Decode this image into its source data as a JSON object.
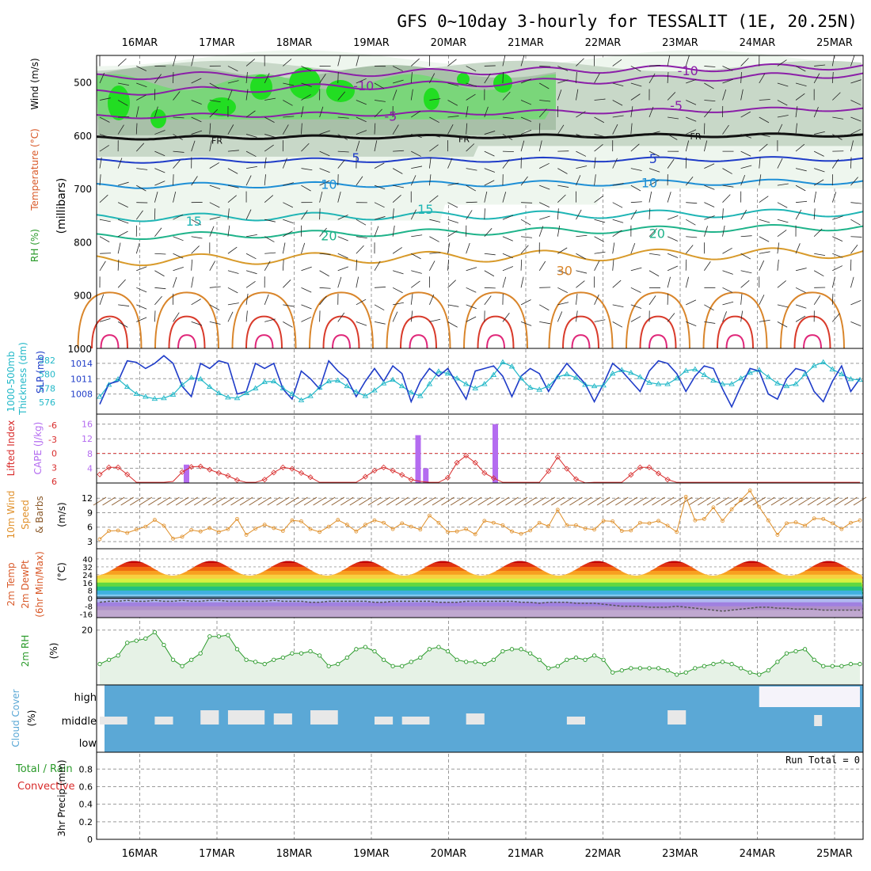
{
  "title": "GFS 0~10day 3-hourly for TESSALIT (1E, 20.25N)",
  "dates": [
    "16MAR",
    "17MAR",
    "18MAR",
    "19MAR",
    "20MAR",
    "21MAR",
    "22MAR",
    "23MAR",
    "24MAR",
    "25MAR"
  ],
  "colors": {
    "grid": "#9a9a9a",
    "rh_green": "#7ad67a",
    "sky": "#5ba8d6",
    "cloud_fill": "#e8e8e8",
    "rh2m": "#2a9a2a",
    "thick": "#22b8c8",
    "slp": "#1f3cc8",
    "li": "#d82b2b",
    "cape": "#b46cf0",
    "wind": "#e0902a",
    "barb": "#8b5a2b"
  },
  "chart_data": [
    {
      "type": "heatmap",
      "panel": "upper_air",
      "ylabel_rh": "RH (%)",
      "ylabel_temp": "Temperature (°C)",
      "ylabel_wind": "Wind (m/s)",
      "ylabel_units": "(millibars)",
      "yticks": [
        500,
        600,
        700,
        800,
        900,
        1000
      ],
      "ylim": [
        1000,
        450
      ],
      "rh_levels": [
        30,
        50,
        70,
        90
      ],
      "isotherm_labels": [
        {
          "text": "-10",
          "date_offset": 7.1,
          "p": 480
        },
        {
          "text": "-10",
          "date_offset": 2.9,
          "p": 508
        },
        {
          "text": "-5",
          "date_offset": 6.95,
          "p": 545
        },
        {
          "text": "-5",
          "date_offset": 3.25,
          "p": 565
        },
        {
          "text": "FR",
          "date_offset": 1.0,
          "p": 608
        },
        {
          "text": "FR",
          "date_offset": 4.2,
          "p": 605
        },
        {
          "text": "FR",
          "date_offset": 7.2,
          "p": 600
        },
        {
          "text": "5",
          "date_offset": 2.8,
          "p": 643
        },
        {
          "text": "5",
          "date_offset": 6.65,
          "p": 645
        },
        {
          "text": "10",
          "date_offset": 2.45,
          "p": 693
        },
        {
          "text": "10",
          "date_offset": 6.6,
          "p": 690
        },
        {
          "text": "15",
          "date_offset": 0.7,
          "p": 762
        },
        {
          "text": "15",
          "date_offset": 3.7,
          "p": 740
        },
        {
          "text": "20",
          "date_offset": 2.45,
          "p": 790
        },
        {
          "text": "20",
          "date_offset": 6.7,
          "p": 785
        },
        {
          "text": "30",
          "date_offset": 5.5,
          "p": 855
        }
      ]
    },
    {
      "type": "line",
      "panel": "thickness_slp",
      "series": [
        {
          "name": "1000-500mb Thickness (dm)",
          "axis_ticks": [
            576,
            578,
            580,
            582
          ],
          "values": [
            576.8,
            578.5,
            579.3,
            578.2,
            577.2,
            576.8,
            576.5,
            576.6,
            577.1,
            578.5,
            579.5,
            579.3,
            578.2,
            577.3,
            576.7,
            576.6,
            577.3,
            578.0,
            578.9,
            579.0,
            578.0,
            577.2,
            576.3,
            576.9,
            578.1,
            579.0,
            579.1,
            578.3,
            577.5,
            576.9,
            577.7,
            578.7,
            579.2,
            578.3,
            577.4,
            576.9,
            578.6,
            580.4,
            580.1,
            579.4,
            578.6,
            578.0,
            578.6,
            579.9,
            581.7,
            581.1,
            579.4,
            578.1,
            577.8,
            578.3,
            579.6,
            580.0,
            579.5,
            578.5,
            578.3,
            578.4,
            580.1,
            580.6,
            580.2,
            579.6,
            578.8,
            578.6,
            578.6,
            579.4,
            580.5,
            580.7,
            579.9,
            579.1,
            578.6,
            578.6,
            579.4,
            580.2,
            580.6,
            579.6,
            578.7,
            578.3,
            578.6,
            580.0,
            581.2,
            581.7,
            580.7,
            580.0,
            579.3,
            579.2
          ]
        },
        {
          "name": "SLP (mb)",
          "axis_ticks": [
            1008,
            1011,
            1014
          ],
          "values": [
            1006,
            1010,
            1010.5,
            1014.5,
            1014.2,
            1013,
            1014,
            1015.5,
            1014,
            1009.5,
            1007.5,
            1014,
            1013,
            1014.5,
            1014,
            1008,
            1008.5,
            1014,
            1013,
            1014,
            1009,
            1007,
            1012.5,
            1011,
            1009,
            1014.5,
            1012.5,
            1011,
            1007.5,
            1010.5,
            1013,
            1010.5,
            1013.5,
            1012,
            1006.5,
            1010.5,
            1013,
            1011.5,
            1013,
            1010,
            1007,
            1012.5,
            1013,
            1013.5,
            1011.5,
            1007.5,
            1011.5,
            1013,
            1012,
            1008.5,
            1011.5,
            1014,
            1012,
            1010,
            1006.5,
            1010,
            1014,
            1012.5,
            1010.5,
            1008.5,
            1012.5,
            1014.5,
            1014,
            1012,
            1008.5,
            1011.5,
            1013.5,
            1013,
            1009,
            1005.5,
            1009.5,
            1013,
            1012.5,
            1008,
            1007,
            1011,
            1013,
            1012.5,
            1008.5,
            1006.5,
            1010.5,
            1013.5,
            1008.5,
            1011
          ]
        }
      ]
    },
    {
      "type": "bar",
      "panel": "stability",
      "ylabel_li": "Lifted Index",
      "ylabel_cape": "CAPE (J/kg)",
      "li_ticks": [
        6,
        3,
        0,
        -3,
        -6
      ],
      "cape_ticks": [
        4,
        8,
        12,
        16
      ],
      "cape_bars": [
        {
          "date_offset": 0.6,
          "value": 5
        },
        {
          "date_offset": 3.6,
          "value": 13
        },
        {
          "date_offset": 3.7,
          "value": 4
        },
        {
          "date_offset": 4.6,
          "value": 16
        }
      ],
      "li_values": [
        4.5,
        3.0,
        3.0,
        4.5,
        6.2,
        6.2,
        6.2,
        6.2,
        6.0,
        4.0,
        2.9,
        2.8,
        3.5,
        4.2,
        4.8,
        5.7,
        6.2,
        6.2,
        5.6,
        4.1,
        3.0,
        3.3,
        4.2,
        5.1,
        6.2,
        6.2,
        6.2,
        6.2,
        6.2,
        5.0,
        3.7,
        3.0,
        3.7,
        4.6,
        5.6,
        6.0,
        6.2,
        6.2,
        5.2,
        2.0,
        0.5,
        2.0,
        4.2,
        5.3,
        6.2,
        6.2,
        6.2,
        6.2,
        6.2,
        3.8,
        0.8,
        3.3,
        5.5,
        6.3,
        6.2,
        6.2,
        6.2,
        6.2,
        4.6,
        3.0,
        3.0,
        4.3,
        5.6,
        6.2,
        6.2,
        6.2,
        6.2,
        6.2,
        6.2,
        6.2,
        6.2,
        6.2,
        6.2,
        6.2,
        6.2,
        6.2,
        6.2,
        6.2,
        6.2,
        6.2,
        6.2,
        6.2,
        6.2,
        6.2
      ]
    },
    {
      "type": "line",
      "panel": "wind10m",
      "ylabel": "10m Wind Speed & Barbs",
      "units": "(m/s)",
      "yticks": [
        3,
        6,
        9,
        12
      ],
      "values": [
        3.5,
        5.2,
        5.3,
        4.8,
        5.5,
        6.1,
        7.5,
        6.3,
        3.6,
        4.0,
        5.4,
        5.1,
        5.8,
        5.0,
        5.6,
        7.7,
        4.4,
        5.7,
        6.5,
        5.8,
        5.2,
        7.4,
        7.2,
        5.6,
        5.0,
        6.1,
        7.5,
        6.5,
        5.1,
        6.5,
        7.4,
        6.9,
        5.6,
        6.8,
        6.1,
        5.5,
        8.4,
        6.9,
        5.0,
        5.1,
        5.6,
        4.5,
        7.3,
        6.9,
        6.4,
        5.1,
        4.6,
        5.3,
        6.9,
        6.2,
        9.6,
        6.4,
        6.4,
        5.7,
        5.5,
        7.3,
        7.2,
        5.2,
        5.3,
        6.9,
        6.8,
        7.3,
        6.3,
        5.0,
        12.3,
        7.4,
        7.7,
        10.1,
        7.3,
        9.7,
        11.6,
        13.6,
        10.2,
        7.4,
        4.4,
        6.8,
        7.0,
        6.3,
        7.8,
        7.7,
        6.8,
        5.6,
        6.9,
        7.4
      ]
    },
    {
      "type": "area",
      "panel": "temp2m",
      "ylabel": "2m Temp 2m DewPt (6hr Min/Max)",
      "units": "(°C)",
      "yticks": [
        40,
        32,
        24,
        16,
        8,
        0,
        -8,
        -16
      ],
      "temp_min": 23,
      "temp_max": 38,
      "dewpoint": [
        -4,
        -3,
        -3,
        -2,
        -3,
        -3,
        -2,
        -3,
        -3,
        -2,
        -3,
        -3,
        -2,
        -2,
        -3,
        -3,
        -3,
        -3,
        -3,
        -2,
        -3,
        -3,
        -3,
        -4,
        -4,
        -3,
        -3,
        -3,
        -3,
        -3,
        -4,
        -4,
        -3,
        -3,
        -3,
        -3,
        -3,
        -4,
        -4,
        -4,
        -3,
        -3,
        -3,
        -3,
        -3,
        -3,
        -4,
        -4,
        -5,
        -4,
        -4,
        -4,
        -5,
        -5,
        -5,
        -6,
        -7,
        -8,
        -8,
        -8,
        -9,
        -9,
        -9,
        -8,
        -9,
        -10,
        -11,
        -12,
        -13,
        -12,
        -11,
        -10,
        -9,
        -9,
        -10,
        -10,
        -11,
        -11,
        -11,
        -12,
        -12,
        -12,
        -12,
        -12
      ]
    },
    {
      "type": "line",
      "panel": "rh2m",
      "ylabel": "2m RH",
      "units": "(%)",
      "yticks": [
        20
      ],
      "values": [
        12,
        13,
        14,
        17,
        17.5,
        18,
        19.5,
        16.5,
        13,
        11.5,
        13,
        14.5,
        18.5,
        18.5,
        18.8,
        15.5,
        13,
        12.5,
        12,
        13,
        13.5,
        14.5,
        14.5,
        15,
        14,
        11.5,
        12,
        13.5,
        15.5,
        16,
        15,
        13,
        11.5,
        11.5,
        12.5,
        13.5,
        15.5,
        16,
        15,
        13,
        12.5,
        12.5,
        12,
        13,
        15,
        15.5,
        15.5,
        14.5,
        13,
        11,
        11.5,
        13,
        13.5,
        13,
        14,
        13,
        10,
        10.5,
        11,
        11,
        11,
        11,
        10.5,
        9.5,
        10,
        11,
        11.5,
        12,
        12.5,
        12,
        11,
        10,
        9.5,
        10.5,
        12.5,
        14.5,
        15,
        15.5,
        13,
        11.5,
        11.5,
        11.5,
        12,
        12
      ]
    },
    {
      "type": "bar",
      "panel": "cloud_cover",
      "ylabel": "Cloud Cover (%)",
      "levels": [
        "high",
        "middle",
        "low"
      ]
    },
    {
      "type": "bar",
      "panel": "precip",
      "ylabel": "3hr Precip (mm)",
      "ylabel_total": "Total / Rain",
      "ylabel_conv": "Convective",
      "yticks": [
        0,
        0.2,
        0.4,
        0.6,
        0.8
      ],
      "run_total_label": "Run Total = 0"
    }
  ]
}
